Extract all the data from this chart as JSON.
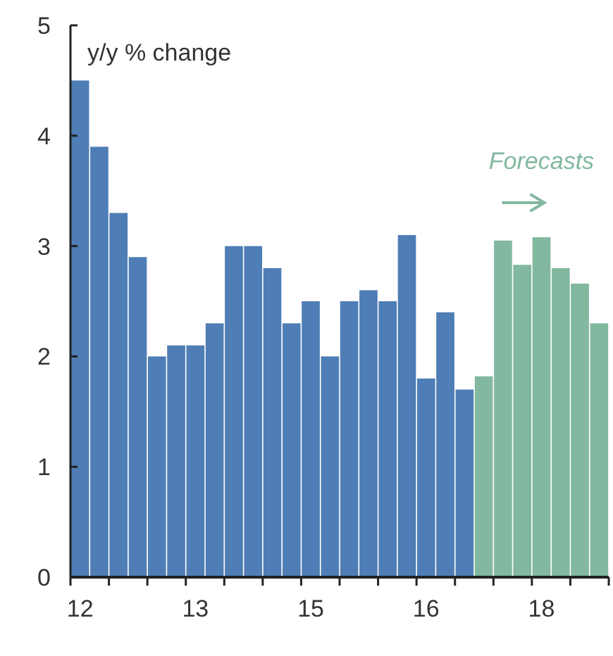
{
  "chart_data": {
    "type": "bar",
    "ylabel": "y/y % change",
    "categories": [
      "12",
      null,
      null,
      null,
      null,
      null,
      "13",
      null,
      null,
      null,
      null,
      null,
      "15",
      null,
      null,
      null,
      null,
      null,
      "16",
      null,
      null,
      null,
      null,
      null,
      "18",
      null,
      null,
      null
    ],
    "values": [
      4.5,
      3.9,
      3.3,
      2.9,
      2.0,
      2.1,
      2.1,
      2.3,
      3.0,
      3.0,
      2.8,
      2.3,
      2.5,
      2.0,
      2.5,
      2.6,
      2.5,
      3.1,
      1.8,
      2.4,
      1.7,
      1.82,
      3.05,
      2.83,
      3.08,
      2.8,
      2.66,
      2.3
    ],
    "colors": [
      "#4f7db5",
      "#4f7db5",
      "#4f7db5",
      "#4f7db5",
      "#4f7db5",
      "#4f7db5",
      "#4f7db5",
      "#4f7db5",
      "#4f7db5",
      "#4f7db5",
      "#4f7db5",
      "#4f7db5",
      "#4f7db5",
      "#4f7db5",
      "#4f7db5",
      "#4f7db5",
      "#4f7db5",
      "#4f7db5",
      "#4f7db5",
      "#4f7db5",
      "#4f7db5",
      "#82b89f",
      "#82b89f",
      "#82b89f",
      "#82b89f",
      "#82b89f",
      "#82b89f",
      "#82b89f"
    ],
    "ylim": [
      0,
      5
    ],
    "yticks": [
      0,
      1,
      2,
      3,
      4,
      5
    ],
    "grid": false,
    "annotations": [
      "Forecasts"
    ]
  }
}
